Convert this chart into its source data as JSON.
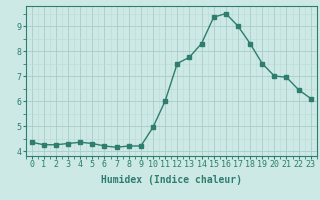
{
  "x": [
    0,
    1,
    2,
    3,
    4,
    5,
    6,
    7,
    8,
    9,
    10,
    11,
    12,
    13,
    14,
    15,
    16,
    17,
    18,
    19,
    20,
    21,
    22,
    23
  ],
  "y": [
    4.35,
    4.25,
    4.25,
    4.3,
    4.35,
    4.3,
    4.2,
    4.15,
    4.2,
    4.2,
    4.95,
    6.0,
    7.5,
    7.75,
    8.3,
    9.35,
    9.5,
    9.0,
    8.3,
    7.5,
    7.0,
    6.95,
    6.45,
    6.1
  ],
  "line_color": "#2e7d6e",
  "marker": "s",
  "markersize": 2.5,
  "bg_color": "#cce9e5",
  "grid_color_major": "#aaccc8",
  "grid_color_minor": "#bbdad6",
  "xlabel": "Humidex (Indice chaleur)",
  "ylim": [
    3.8,
    9.8
  ],
  "xlim": [
    -0.5,
    23.5
  ],
  "yticks": [
    4,
    5,
    6,
    7,
    8,
    9
  ],
  "xticks": [
    0,
    1,
    2,
    3,
    4,
    5,
    6,
    7,
    8,
    9,
    10,
    11,
    12,
    13,
    14,
    15,
    16,
    17,
    18,
    19,
    20,
    21,
    22,
    23
  ],
  "xlabel_fontsize": 7,
  "tick_fontsize": 6,
  "linewidth": 1.0
}
